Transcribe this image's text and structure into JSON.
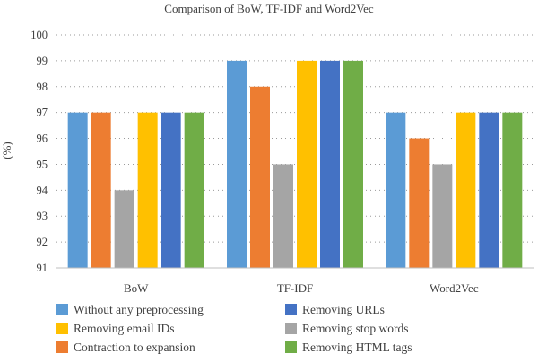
{
  "chart_data": {
    "type": "bar",
    "title": "Comparison of BoW, TF-IDF and Word2Vec",
    "ylabel": "(%)",
    "xlabel": "",
    "ylim": [
      91,
      100
    ],
    "yticks": [
      91,
      92,
      93,
      94,
      95,
      96,
      97,
      98,
      99,
      100
    ],
    "grid": "horizontal dotted",
    "legend_position": "bottom",
    "categories": [
      "BoW",
      "TF-IDF",
      "Word2Vec"
    ],
    "series": [
      {
        "name": "Without any preprocessing",
        "color": "#5B9BD5",
        "values": [
          97,
          99,
          97
        ]
      },
      {
        "name": "Contraction to expansion",
        "color": "#ED7D31",
        "values": [
          97,
          98,
          96
        ]
      },
      {
        "name": "Removing stop words",
        "color": "#A5A5A5",
        "values": [
          94,
          95,
          95
        ]
      },
      {
        "name": "Removing email IDs",
        "color": "#FFC000",
        "values": [
          97,
          99,
          97
        ]
      },
      {
        "name": "Removing URLs",
        "color": "#4472C4",
        "values": [
          97,
          99,
          97
        ]
      },
      {
        "name": "Removing HTML tags",
        "color": "#70AD47",
        "values": [
          97,
          99,
          97
        ]
      }
    ],
    "legend_order": [
      0,
      3,
      1,
      4,
      2,
      5
    ]
  }
}
